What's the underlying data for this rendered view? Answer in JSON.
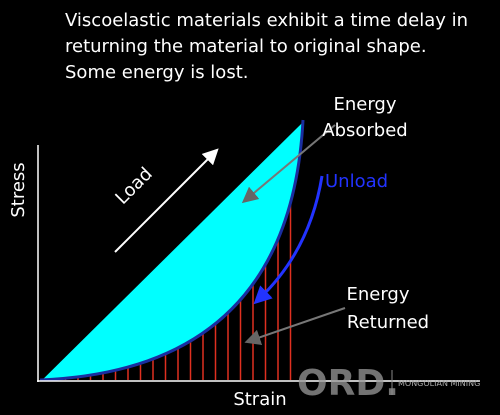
{
  "title_lines": [
    "Viscoelastic materials exhibit a time delay in",
    "returning the material to original shape.",
    "Some energy is lost."
  ],
  "labels": {
    "energy_absorbed": [
      "Energy",
      "Absorbed"
    ],
    "unload": "Unload",
    "load": "Load",
    "energy_returned": [
      "Energy",
      "Returned"
    ],
    "y_axis": "Stress",
    "x_axis": "Strain"
  },
  "watermark": {
    "logo": "ORD.",
    "company": "MONGOLIAN MINING"
  }
}
